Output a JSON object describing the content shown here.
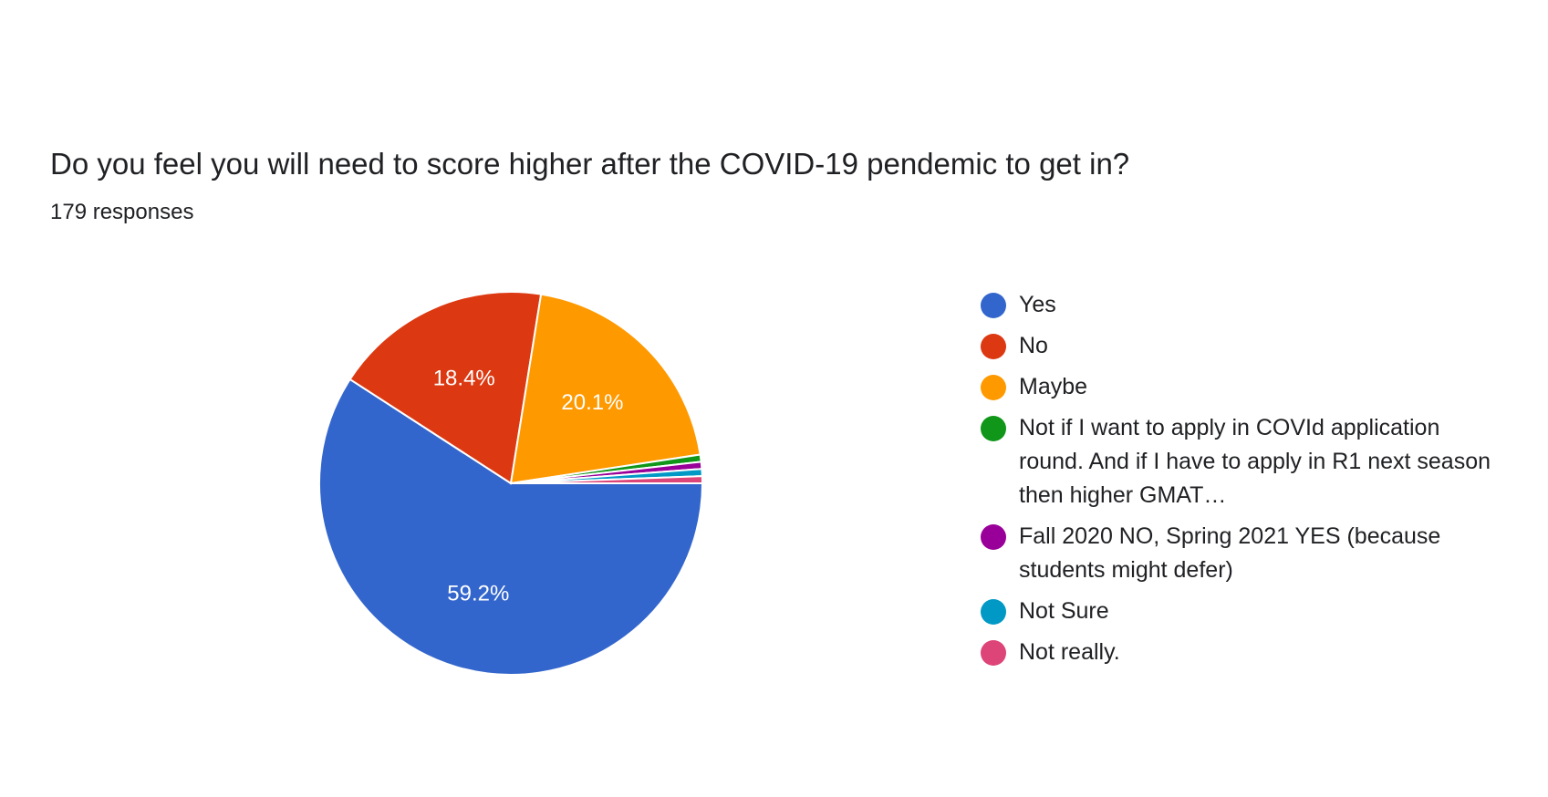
{
  "chart_data": {
    "type": "pie",
    "title": "Do you feel you will need to score higher after the COVID-19 pendemic to get in?",
    "subtitle": "179 responses",
    "legend_position": "right",
    "slices": [
      {
        "label": "Yes",
        "value": 59.2,
        "display": "59.2%",
        "color": "#3366cc"
      },
      {
        "label": "No",
        "value": 18.4,
        "display": "18.4%",
        "color": "#dc3912"
      },
      {
        "label": "Maybe",
        "value": 20.1,
        "display": "20.1%",
        "color": "#ff9900"
      },
      {
        "label": "Not if I want to apply in COVId application round. And if I have to apply in R1 next season then higher GMAT…",
        "value": 0.6,
        "display": "",
        "color": "#109618"
      },
      {
        "label": "Fall 2020 NO, Spring 2021 YES (because students might defer)",
        "value": 0.6,
        "display": "",
        "color": "#990099"
      },
      {
        "label": "Not Sure",
        "value": 0.6,
        "display": "",
        "color": "#0099c6"
      },
      {
        "label": "Not really.",
        "value": 0.6,
        "display": "",
        "color": "#dd4477"
      }
    ]
  }
}
